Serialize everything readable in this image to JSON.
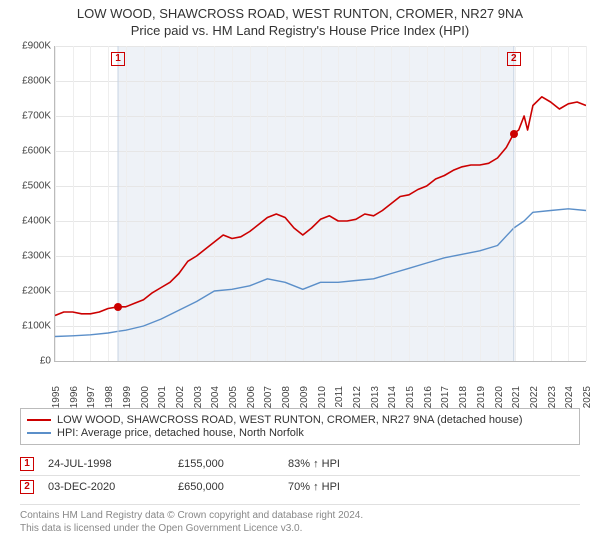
{
  "title": {
    "line1": "LOW WOOD, SHAWCROSS ROAD, WEST RUNTON, CROMER, NR27 9NA",
    "line2": "Price paid vs. HM Land Registry's House Price Index (HPI)",
    "fontsize": 13,
    "color": "#333333"
  },
  "chart": {
    "type": "line",
    "background_color": "#ffffff",
    "grid_color": "#e6e6e6",
    "axis_color": "#bbbbbb",
    "shade_color": "#eef2f7",
    "x_axis": {
      "min": 1995,
      "max": 2025,
      "ticks": [
        1995,
        1996,
        1997,
        1998,
        1999,
        2000,
        2001,
        2002,
        2003,
        2004,
        2005,
        2006,
        2007,
        2008,
        2009,
        2010,
        2011,
        2012,
        2013,
        2014,
        2015,
        2016,
        2017,
        2018,
        2019,
        2020,
        2021,
        2022,
        2023,
        2024,
        2025
      ],
      "label_fontsize": 10,
      "rotation": -90
    },
    "y_axis": {
      "min": 0,
      "max": 900000,
      "ticks": [
        0,
        100000,
        200000,
        300000,
        400000,
        500000,
        600000,
        700000,
        800000,
        900000
      ],
      "tick_labels": [
        "£0",
        "£100K",
        "£200K",
        "£300K",
        "£400K",
        "£500K",
        "£600K",
        "£700K",
        "£800K",
        "£900K"
      ],
      "label_fontsize": 10
    },
    "shaded_range": {
      "start": 1998.56,
      "end": 2020.92
    },
    "series": [
      {
        "id": "property",
        "label": "LOW WOOD, SHAWCROSS ROAD, WEST RUNTON, CROMER, NR27 9NA (detached house)",
        "color": "#cc0000",
        "line_width": 1.6,
        "data": [
          [
            1995.0,
            130000
          ],
          [
            1995.5,
            140000
          ],
          [
            1996.0,
            140000
          ],
          [
            1996.5,
            135000
          ],
          [
            1997.0,
            135000
          ],
          [
            1997.5,
            140000
          ],
          [
            1998.0,
            150000
          ],
          [
            1998.56,
            155000
          ],
          [
            1999.0,
            155000
          ],
          [
            1999.5,
            165000
          ],
          [
            2000.0,
            175000
          ],
          [
            2000.5,
            195000
          ],
          [
            2001.0,
            210000
          ],
          [
            2001.5,
            225000
          ],
          [
            2002.0,
            250000
          ],
          [
            2002.5,
            285000
          ],
          [
            2003.0,
            300000
          ],
          [
            2003.5,
            320000
          ],
          [
            2004.0,
            340000
          ],
          [
            2004.5,
            360000
          ],
          [
            2005.0,
            350000
          ],
          [
            2005.5,
            355000
          ],
          [
            2006.0,
            370000
          ],
          [
            2006.5,
            390000
          ],
          [
            2007.0,
            410000
          ],
          [
            2007.5,
            420000
          ],
          [
            2008.0,
            410000
          ],
          [
            2008.5,
            380000
          ],
          [
            2009.0,
            360000
          ],
          [
            2009.5,
            380000
          ],
          [
            2010.0,
            405000
          ],
          [
            2010.5,
            415000
          ],
          [
            2011.0,
            400000
          ],
          [
            2011.5,
            400000
          ],
          [
            2012.0,
            405000
          ],
          [
            2012.5,
            420000
          ],
          [
            2013.0,
            415000
          ],
          [
            2013.5,
            430000
          ],
          [
            2014.0,
            450000
          ],
          [
            2014.5,
            470000
          ],
          [
            2015.0,
            475000
          ],
          [
            2015.5,
            490000
          ],
          [
            2016.0,
            500000
          ],
          [
            2016.5,
            520000
          ],
          [
            2017.0,
            530000
          ],
          [
            2017.5,
            545000
          ],
          [
            2018.0,
            555000
          ],
          [
            2018.5,
            560000
          ],
          [
            2019.0,
            560000
          ],
          [
            2019.5,
            565000
          ],
          [
            2020.0,
            580000
          ],
          [
            2020.5,
            610000
          ],
          [
            2020.92,
            650000
          ],
          [
            2021.2,
            660000
          ],
          [
            2021.5,
            700000
          ],
          [
            2021.7,
            660000
          ],
          [
            2022.0,
            730000
          ],
          [
            2022.5,
            755000
          ],
          [
            2023.0,
            740000
          ],
          [
            2023.5,
            720000
          ],
          [
            2024.0,
            735000
          ],
          [
            2024.5,
            740000
          ],
          [
            2025.0,
            730000
          ]
        ]
      },
      {
        "id": "hpi",
        "label": "HPI: Average price, detached house, North Norfolk",
        "color": "#5b8fc9",
        "line_width": 1.4,
        "data": [
          [
            1995.0,
            70000
          ],
          [
            1996.0,
            72000
          ],
          [
            1997.0,
            75000
          ],
          [
            1998.0,
            80000
          ],
          [
            1998.56,
            85000
          ],
          [
            1999.0,
            88000
          ],
          [
            2000.0,
            100000
          ],
          [
            2001.0,
            120000
          ],
          [
            2002.0,
            145000
          ],
          [
            2003.0,
            170000
          ],
          [
            2004.0,
            200000
          ],
          [
            2005.0,
            205000
          ],
          [
            2006.0,
            215000
          ],
          [
            2007.0,
            235000
          ],
          [
            2008.0,
            225000
          ],
          [
            2009.0,
            205000
          ],
          [
            2010.0,
            225000
          ],
          [
            2011.0,
            225000
          ],
          [
            2012.0,
            230000
          ],
          [
            2013.0,
            235000
          ],
          [
            2014.0,
            250000
          ],
          [
            2015.0,
            265000
          ],
          [
            2016.0,
            280000
          ],
          [
            2017.0,
            295000
          ],
          [
            2018.0,
            305000
          ],
          [
            2019.0,
            315000
          ],
          [
            2020.0,
            330000
          ],
          [
            2020.92,
            380000
          ],
          [
            2021.5,
            400000
          ],
          [
            2022.0,
            425000
          ],
          [
            2023.0,
            430000
          ],
          [
            2024.0,
            435000
          ],
          [
            2025.0,
            430000
          ]
        ]
      }
    ],
    "markers": [
      {
        "index": 1,
        "year": 1998.56,
        "value": 155000
      },
      {
        "index": 2,
        "year": 2020.92,
        "value": 650000
      }
    ]
  },
  "legend": {
    "fontsize": 11,
    "border_color": "#bbbbbb",
    "items": [
      {
        "color": "#cc0000",
        "label": "LOW WOOD, SHAWCROSS ROAD, WEST RUNTON, CROMER, NR27 9NA (detached house)"
      },
      {
        "color": "#5b8fc9",
        "label": "HPI: Average price, detached house, North Norfolk"
      }
    ]
  },
  "transactions": {
    "fontsize": 11,
    "marker_border_color": "#cc0000",
    "rows": [
      {
        "idx": "1",
        "date": "24-JUL-1998",
        "price": "£155,000",
        "pct": "83% ↑ HPI"
      },
      {
        "idx": "2",
        "date": "03-DEC-2020",
        "price": "£650,000",
        "pct": "70% ↑ HPI"
      }
    ]
  },
  "footer": {
    "line1": "Contains HM Land Registry data © Crown copyright and database right 2024.",
    "line2": "This data is licensed under the Open Government Licence v3.0.",
    "color": "#888888",
    "fontsize": 10
  }
}
